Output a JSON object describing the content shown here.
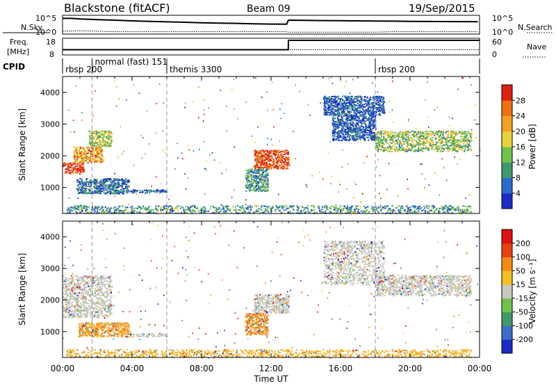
{
  "header": {
    "station": "Blackstone (fitACF)",
    "beam": "Beam 09",
    "date": "19/Sep/2015"
  },
  "chart_data": [
    {
      "type": "line",
      "name": "noise-panel",
      "left_label": "N.Sky",
      "right_label": "N.Search",
      "left_ticks": [
        "10^5",
        "10^0"
      ],
      "right_ticks": [
        "10^5",
        "10^0"
      ],
      "x": [
        0,
        0.5,
        1,
        2,
        3,
        4,
        5,
        6,
        7,
        8,
        9,
        10,
        11,
        12,
        12.9,
        13,
        14,
        15,
        16,
        17,
        18,
        19,
        20,
        21,
        22,
        23,
        23.9
      ],
      "n_sky": [
        30000,
        30000,
        20000,
        12000,
        8000,
        5000,
        3500,
        2500,
        1800,
        1300,
        1000,
        800,
        600,
        500,
        450,
        8000,
        7000,
        6000,
        5500,
        5000,
        4500,
        4000,
        3500,
        3200,
        3000,
        2800,
        2600
      ],
      "n_search": [
        3,
        3,
        4,
        3,
        2,
        2,
        2,
        2,
        2,
        2,
        2,
        2,
        2,
        2,
        2,
        1.5,
        1.5,
        1.5,
        1.5,
        1.5,
        1.5,
        2,
        2,
        2,
        2,
        2,
        2
      ],
      "xlim": [
        0,
        24
      ]
    },
    {
      "type": "line",
      "name": "freq-nave-panel",
      "left_label_line1": "Freq.",
      "left_label_line2": "[MHz]",
      "right_label": "Nave",
      "left_ticks": [
        "18",
        "8"
      ],
      "right_ticks": [
        "60",
        "0"
      ],
      "x": [
        0,
        12.99,
        13.0,
        24
      ],
      "freq_mhz": [
        10.5,
        10.5,
        18,
        18
      ],
      "nave": [
        15,
        15,
        15,
        15
      ],
      "freq_range": [
        8,
        18
      ],
      "nave_range": [
        0,
        60
      ],
      "xlim": [
        0,
        24
      ]
    },
    {
      "type": "table",
      "name": "cpid-panel",
      "label": "CPID",
      "modes": [
        {
          "text": "rbsp 200",
          "start": 0.0
        },
        {
          "text": "normal (fast) 151",
          "start": 1.7
        },
        {
          "text": "themis 3300",
          "start": 6.0
        },
        {
          "text": "rbsp 200",
          "start": 18.0
        }
      ]
    },
    {
      "type": "heatmap",
      "name": "power-panel",
      "ylabel": "Slant Range [km]",
      "yticks": [
        1000,
        2000,
        3000,
        4000
      ],
      "ylim": [
        180,
        4500
      ],
      "xlim": [
        0,
        24
      ],
      "colorbar_label": "Power [dB]",
      "colorbar_ticks": [
        "4",
        "8",
        "12",
        "16",
        "20",
        "24",
        "28"
      ],
      "colorbar_colors": [
        "#1a2cc8",
        "#2a6bd0",
        "#3e9a6a",
        "#6fc24a",
        "#e8d23a",
        "#f5a020",
        "#f07010",
        "#e02010"
      ],
      "mode_dividers": [
        1.7,
        6.0,
        18.0
      ],
      "regions": [
        {
          "t": [
            0.0,
            1.2
          ],
          "r": [
            1450,
            1800
          ],
          "level": 0.95
        },
        {
          "t": [
            0.6,
            2.3
          ],
          "r": [
            1800,
            2300
          ],
          "level": 0.7
        },
        {
          "t": [
            1.5,
            2.8
          ],
          "r": [
            2300,
            2800
          ],
          "level": 0.5
        },
        {
          "t": [
            0.8,
            3.8
          ],
          "r": [
            820,
            1300
          ],
          "level": 0.2
        },
        {
          "t": [
            3.8,
            6.0
          ],
          "r": [
            850,
            950
          ],
          "level": 0.15
        },
        {
          "t": [
            0.2,
            23.5
          ],
          "r": [
            200,
            450
          ],
          "level": 0.3
        },
        {
          "t": [
            11.0,
            13.0
          ],
          "r": [
            1600,
            2200
          ],
          "level": 0.9
        },
        {
          "t": [
            10.5,
            11.8
          ],
          "r": [
            900,
            1600
          ],
          "level": 0.3
        },
        {
          "t": [
            15.0,
            18.5
          ],
          "r": [
            3300,
            3900
          ],
          "level": 0.15
        },
        {
          "t": [
            15.5,
            18.0
          ],
          "r": [
            2500,
            3300
          ],
          "level": 0.15
        },
        {
          "t": [
            18.0,
            23.5
          ],
          "r": [
            2150,
            2800
          ],
          "level": 0.45
        }
      ]
    },
    {
      "type": "heatmap",
      "name": "velocity-panel",
      "ylabel": "Slant Range [km]",
      "yticks": [
        1000,
        2000,
        3000,
        4000
      ],
      "ylim": [
        180,
        4500
      ],
      "xlim": [
        0,
        24
      ],
      "xlabel": "Time UT",
      "xticks": [
        "00:00",
        "04:00",
        "08:00",
        "12:00",
        "16:00",
        "20:00",
        "00:00"
      ],
      "colorbar_label": "Velocity [m s⁻¹]",
      "colorbar_ticks": [
        "200",
        "100",
        "50",
        "15",
        "-15",
        "-50",
        "-100",
        "-200"
      ],
      "colorbar_colors": [
        "#1a2cc8",
        "#3a6ec8",
        "#3e9a6a",
        "#6fc24a",
        "#c8c8c0",
        "#f5c020",
        "#f58a10",
        "#e84010",
        "#e01010"
      ],
      "mode_dividers": [
        1.7,
        6.0,
        18.0
      ],
      "regions": [
        {
          "t": [
            0.0,
            2.8
          ],
          "r": [
            1450,
            2800
          ],
          "color": "#c8c8c0"
        },
        {
          "t": [
            0.9,
            3.8
          ],
          "r": [
            850,
            1300
          ],
          "color": "#f5a020"
        },
        {
          "t": [
            3.8,
            6.0
          ],
          "r": [
            850,
            950
          ],
          "color": "#c8c8c0"
        },
        {
          "t": [
            0.2,
            23.5
          ],
          "r": [
            200,
            450
          ],
          "color": "#f5b020"
        },
        {
          "t": [
            11.0,
            13.0
          ],
          "r": [
            1600,
            2200
          ],
          "color": "#c8c8c0"
        },
        {
          "t": [
            10.5,
            11.8
          ],
          "r": [
            900,
            1600
          ],
          "color": "#f59020"
        },
        {
          "t": [
            15.0,
            18.5
          ],
          "r": [
            2500,
            3900
          ],
          "color": "#c8c8c0"
        },
        {
          "t": [
            18.0,
            23.5
          ],
          "r": [
            2150,
            2800
          ],
          "color": "#c8c8c0"
        }
      ]
    }
  ]
}
